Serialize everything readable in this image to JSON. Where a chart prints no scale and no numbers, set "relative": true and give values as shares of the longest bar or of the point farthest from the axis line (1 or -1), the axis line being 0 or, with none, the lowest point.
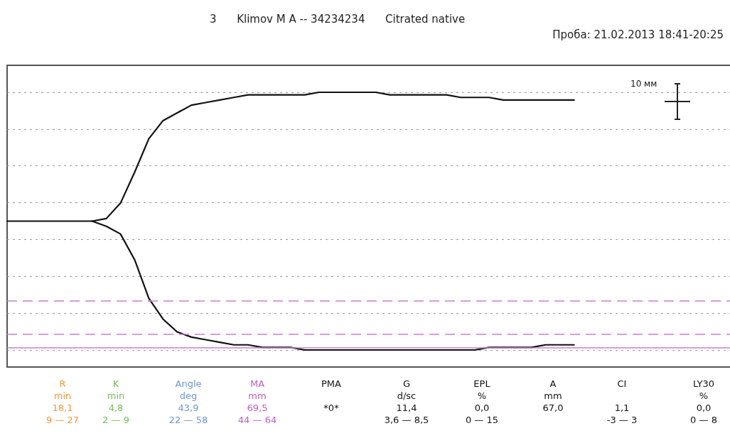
{
  "chart_data": {
    "type": "line",
    "relative": true,
    "title": "3      Klimov M A -- 34234234      Citrated native",
    "subtitle": "Проба: 21.02.2013 18:41-20:25",
    "categories": [
      null,
      null,
      null,
      null,
      null,
      null,
      null,
      null,
      null,
      null,
      null,
      null,
      null,
      null,
      null,
      null,
      null,
      null,
      null,
      null,
      null,
      null,
      null,
      null,
      null,
      null,
      null,
      null,
      null,
      null,
      null,
      null,
      null,
      null,
      null,
      null,
      null,
      null,
      null,
      null,
      null
    ],
    "series": [
      {
        "color": "#111111",
        "values": [
          0.5,
          0.5,
          0.5,
          0.5,
          0.5,
          0.5,
          0.5,
          0.51,
          0.57,
          0.69,
          0.82,
          0.89,
          0.92,
          0.95,
          0.96,
          0.97,
          0.98,
          0.99,
          0.99,
          0.99,
          0.99,
          0.99,
          1,
          1,
          1,
          1,
          1,
          0.99,
          0.99,
          0.99,
          0.99,
          0.99,
          0.98,
          0.98,
          0.98,
          0.97,
          0.97,
          0.97,
          0.97,
          0.97,
          0.97
        ]
      },
      {
        "color": "#111111",
        "values": [
          null,
          null,
          null,
          null,
          null,
          null,
          0.5,
          0.48,
          0.45,
          0.35,
          0.2,
          0.12,
          0.07,
          0.05,
          0.04,
          0.03,
          0.02,
          0.02,
          0.01,
          0.01,
          0.01,
          0,
          0,
          0,
          0,
          0,
          0,
          0,
          0,
          0,
          0,
          0,
          0,
          0,
          0.01,
          0.01,
          0.01,
          0.01,
          0.02,
          0.02,
          0.02
        ]
      }
    ],
    "ref_lines": [
      {
        "axis": "y",
        "value": 0.19,
        "color": "#c77fd0",
        "line_style": "dashed"
      },
      {
        "axis": "y",
        "value": 0.06,
        "color": "#c77fd0",
        "line_style": "dashed"
      },
      {
        "axis": "y",
        "value": 0.01,
        "color": "#c77fd0",
        "line_style": "solid"
      }
    ],
    "grid": "y",
    "marker": "none",
    "line_style": "solid",
    "annotations": [
      "10 мм",
      "R\nmin\n18,1\n9 — 27",
      "K\nmin\n4,8\n2 — 9",
      "Angle\ndeg\n43,9\n22 — 58",
      "MA\nmm\n69,5\n44 — 64",
      "PMA\n\n*0*\n",
      "G\nd/sc\n11,4\n3,6 — 8,5",
      "EPL\n%\n0,0\n0 — 15",
      "A\nmm\n67,0\n",
      "CI\n\n1,1\n-3 — 3",
      "LY30\n%\n0,0\n0 — 8"
    ]
  }
}
